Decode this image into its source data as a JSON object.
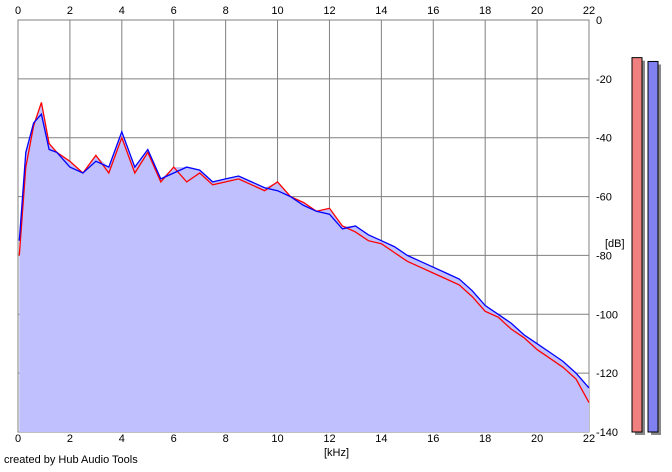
{
  "caption": "created by Hub Audio Tools",
  "colors": {
    "background": "#ffffff",
    "plot_background": "#ffffff",
    "grid": "#808080",
    "fill": "#c0c0ff",
    "channel_1": "#ff0000",
    "channel_2": "#0000ff",
    "meter_1": "#f08080",
    "meter_2": "#8080f0"
  },
  "chart_data": {
    "type": "line",
    "title": "",
    "xlabel": "[kHz]",
    "ylabel": "[dB]",
    "xlim": [
      0,
      22
    ],
    "ylim": [
      -140,
      0
    ],
    "x_ticks": [
      "0",
      "2",
      "4",
      "6",
      "8",
      "10",
      "12",
      "14",
      "16",
      "18",
      "20",
      "22"
    ],
    "y_ticks": [
      "0",
      "-20",
      "-40",
      "-60",
      "-80",
      "-100",
      "-120",
      "-140"
    ],
    "grid": true,
    "x": [
      0.05,
      0.3,
      0.6,
      0.9,
      1.2,
      1.5,
      2.0,
      2.5,
      3.0,
      3.5,
      4.0,
      4.5,
      5.0,
      5.5,
      6.0,
      6.5,
      7.0,
      7.5,
      8.0,
      8.5,
      9.0,
      9.5,
      10.0,
      10.5,
      11.0,
      11.5,
      12.0,
      12.5,
      13.0,
      13.5,
      14.0,
      14.5,
      15.0,
      15.5,
      16.0,
      16.5,
      17.0,
      17.5,
      18.0,
      18.5,
      19.0,
      19.5,
      20.0,
      20.5,
      21.0,
      21.5,
      22.0
    ],
    "series": [
      {
        "color": "#ff0000",
        "values": [
          -80,
          -50,
          -36,
          -28,
          -42,
          -45,
          -48,
          -52,
          -46,
          -52,
          -40,
          -52,
          -45,
          -55,
          -50,
          -55,
          -52,
          -56,
          -55,
          -54,
          -56,
          -58,
          -55,
          -60,
          -62,
          -65,
          -64,
          -70,
          -72,
          -75,
          -76,
          -79,
          -82,
          -84,
          -86,
          -88,
          -90,
          -94,
          -99,
          -101,
          -105,
          -108,
          -112,
          -115,
          -118,
          -122,
          -130
        ]
      },
      {
        "color": "#0000ff",
        "values": [
          -75,
          -45,
          -35,
          -32,
          -44,
          -45,
          -50,
          -52,
          -48,
          -50,
          -38,
          -50,
          -44,
          -54,
          -52,
          -50,
          -51,
          -55,
          -54,
          -53,
          -55,
          -57,
          -58,
          -60,
          -63,
          -65,
          -66,
          -71,
          -70,
          -73,
          -75,
          -77,
          -80,
          -82,
          -84,
          -86,
          -88,
          -92,
          -97,
          -100,
          -103,
          -107,
          -110,
          -113,
          -116,
          -120,
          -125
        ]
      }
    ]
  },
  "meters": [
    {
      "level": 0.98
    },
    {
      "level": 0.97
    }
  ]
}
